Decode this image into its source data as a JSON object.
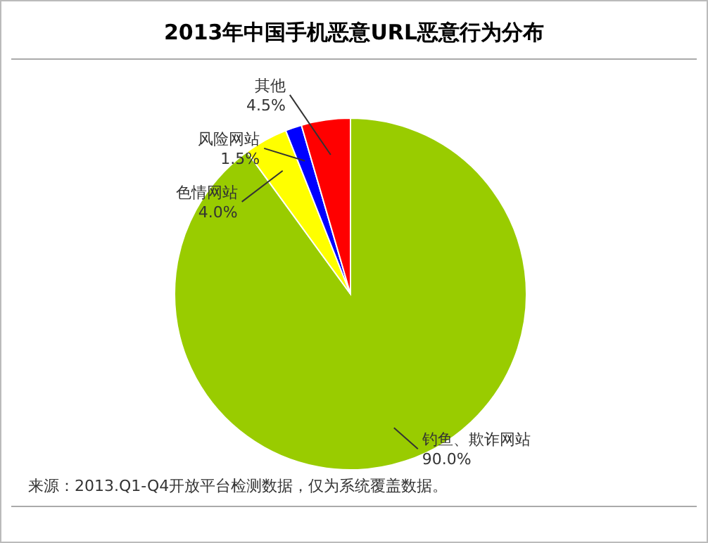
{
  "chart_data": {
    "type": "pie",
    "title": "2013年中国手机恶意URL恶意行为分布",
    "categories": [
      "钓鱼、欺诈网站",
      "色情网站",
      "风险网站",
      "其他"
    ],
    "values": [
      90.0,
      4.0,
      1.5,
      4.5
    ],
    "colors": [
      "#99cc00",
      "#ffff00",
      "#0000ff",
      "#ff0000"
    ],
    "value_labels": [
      "90.0%",
      "4.0%",
      "1.5%",
      "4.5%"
    ],
    "annotations": [
      "来源：2013.Q1-Q4开放平台检测数据，仅为系统覆盖数据。"
    ]
  }
}
